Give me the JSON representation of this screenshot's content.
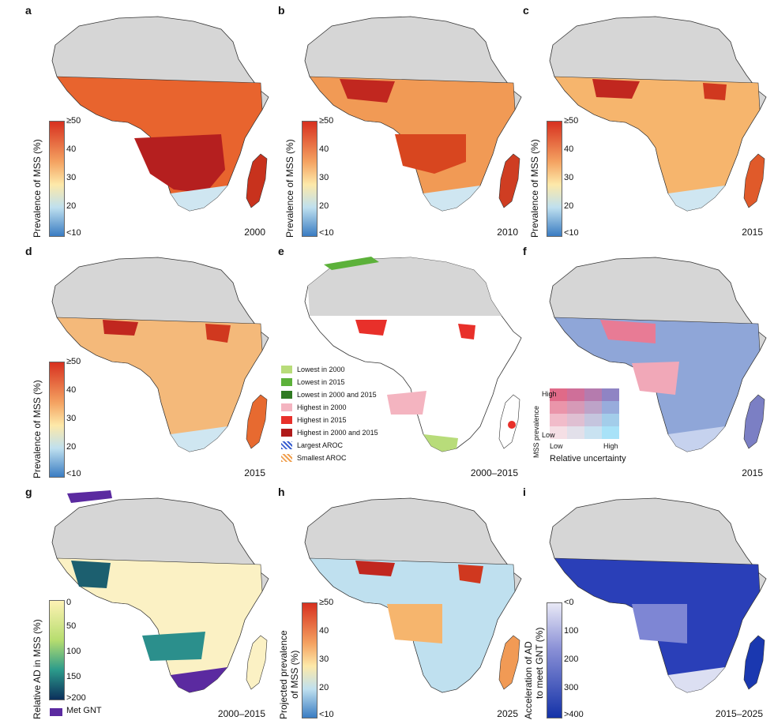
{
  "panels": [
    {
      "letter": "a",
      "period": "2000",
      "cbar_title": "Prevalence of MSS (%)",
      "ticks": [
        "≥50",
        "40",
        "30",
        "20",
        "<10"
      ]
    },
    {
      "letter": "b",
      "period": "2010",
      "cbar_title": "Prevalence of MSS (%)",
      "ticks": [
        "≥50",
        "40",
        "30",
        "20",
        "<10"
      ]
    },
    {
      "letter": "c",
      "period": "2015",
      "cbar_title": "Prevalence of MSS (%)",
      "ticks": [
        "≥50",
        "40",
        "30",
        "20",
        "<10"
      ]
    },
    {
      "letter": "d",
      "period": "2015",
      "cbar_title": "Prevalence of MSS (%)",
      "ticks": [
        "≥50",
        "40",
        "30",
        "20",
        "<10"
      ]
    },
    {
      "letter": "e",
      "period": "2000–2015"
    },
    {
      "letter": "f",
      "period": "2015"
    },
    {
      "letter": "g",
      "period": "2000–2015",
      "cbar_title": "Relative AD in MSS (%)",
      "ticks": [
        "0",
        "50",
        "100",
        "150",
        ">200"
      ],
      "extra_label": "Met GNT"
    },
    {
      "letter": "h",
      "period": "2025",
      "cbar_title_1": "Projected prevalence",
      "cbar_title_2": "of MSS (%)",
      "ticks": [
        "≥50",
        "40",
        "30",
        "20",
        "<10"
      ]
    },
    {
      "letter": "i",
      "period": "2015–2025",
      "cbar_title_1": "Acceleration of AD",
      "cbar_title_2": "to meet GNT (%)",
      "ticks": [
        "<0",
        "100",
        "200",
        "300",
        ">400"
      ]
    }
  ],
  "legend_e": [
    {
      "label": "Lowest in 2000",
      "color": "#b8dc7a"
    },
    {
      "label": "Lowest in 2015",
      "color": "#5cb13a"
    },
    {
      "label": "Lowest in 2000 and 2015",
      "color": "#2f7a22"
    },
    {
      "label": "Highest in 2000",
      "color": "#f4b4c0"
    },
    {
      "label": "Highest in 2015",
      "color": "#e8302a"
    },
    {
      "label": "Highest in 2000 and 2015",
      "color": "#b01a1a"
    },
    {
      "label": "Largest AROC",
      "color": "#3a5fd0"
    },
    {
      "label": "Smallest AROC",
      "color": "#f0a050"
    }
  ],
  "legend_f": {
    "y_label": "MSS prevalence",
    "x_label": "Relative uncertainty",
    "high": "High",
    "low": "Low"
  },
  "colors": {
    "land_gray": "#d6d6d6",
    "ocean": "#ffffff",
    "border": "#333333"
  }
}
